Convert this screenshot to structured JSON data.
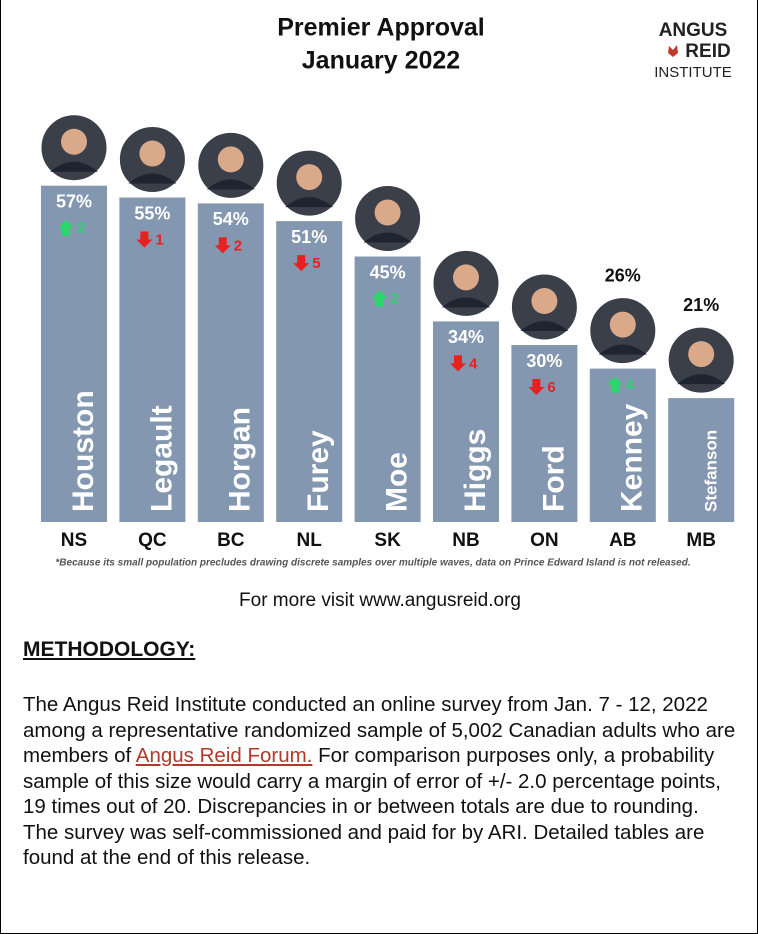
{
  "chart_data": {
    "type": "bar",
    "title": "Premier Approval",
    "subtitle": "January 2022",
    "categories": [
      "NS",
      "QC",
      "BC",
      "NL",
      "SK",
      "NB",
      "ON",
      "AB",
      "MB"
    ],
    "names": [
      "Houston",
      "Legault",
      "Horgan",
      "Furey",
      "Moe",
      "Higgs",
      "Ford",
      "Kenney",
      "Stefanson"
    ],
    "values": [
      57,
      55,
      54,
      51,
      45,
      34,
      30,
      26,
      21
    ],
    "value_labels": [
      "57%",
      "55%",
      "54%",
      "51%",
      "45%",
      "34%",
      "30%",
      "26%",
      "21%"
    ],
    "changes": [
      2,
      -1,
      -2,
      -5,
      2,
      -4,
      -6,
      4,
      null
    ],
    "change_labels": [
      "2",
      "1",
      "2",
      "5",
      "2",
      "4",
      "6",
      "4",
      null
    ],
    "color": "#8497b0",
    "up_color": "#2bd66b",
    "down_color": "#e8201f",
    "footnote": "*Because its small population precludes drawing discrete samples over multiple waves, data on Prince Edward Island is not released."
  },
  "logo": {
    "line1": "ANGUS",
    "line2": "REID",
    "line3": "INSTITUTE"
  },
  "footer": {
    "visit": "For more visit www.angusreid.org"
  },
  "methodology": {
    "heading": "METHODOLOGY:",
    "text_before": "The Angus Reid Institute conducted an online survey from Jan. 7 - 12, 2022 among a representative randomized sample of 5,002 Canadian adults who are members of ",
    "link": "Angus Reid Forum.",
    "text_after": " For comparison purposes only, a probability sample of this size would carry a margin of error of +/- 2.0 percentage points, 19 times out of 20. Discrepancies in or between totals are due to rounding. The survey was self-commissioned and paid for by ARI. Detailed tables are found at the end of this release."
  }
}
